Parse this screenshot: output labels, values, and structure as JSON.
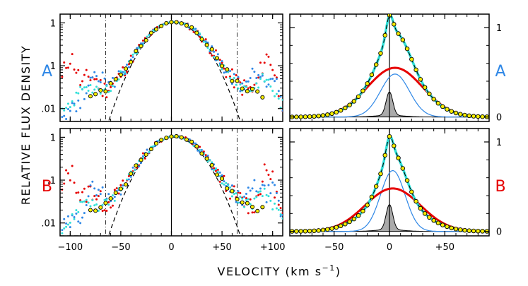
{
  "colors": {
    "blue": "#2e87e6",
    "red": "#e60000",
    "cyan": "#2fe0d8",
    "dot_fill": "#f5ec00",
    "gray_fill": "#aaaaaa",
    "black": "#000000"
  },
  "labels": {
    "ylabel": "RELATIVE FLUX DENSITY",
    "xlabel": "VELOCITY  (km s",
    "xlabel_sup": "−1",
    "xlabel_close": ")",
    "image_A": "A",
    "image_B": "B"
  },
  "chart_data": [
    {
      "panel": "A-log",
      "type": "line",
      "yscale": "log",
      "xlim": [
        -110,
        110
      ],
      "ylim": [
        0.005,
        1.6
      ],
      "xticks": [
        -100,
        -50,
        0,
        50,
        100
      ],
      "xticklabels": [
        "−100",
        "−50",
        "0",
        "+50",
        "+100"
      ],
      "yticks": [
        0.01,
        0.1,
        1
      ],
      "yticklabels": [
        ".01",
        ".1",
        "1"
      ],
      "vlines": [
        -65,
        0,
        65
      ],
      "profile": {
        "center": 3,
        "core_sigma": 20,
        "wing_amp": 0.05,
        "wing_sigma": 60,
        "wing_shift": 5
      },
      "image_label": "A"
    },
    {
      "panel": "A-linear",
      "type": "line",
      "yscale": "linear",
      "xlim": [
        -90,
        90
      ],
      "ylim": [
        -0.05,
        1.15
      ],
      "xticks": [
        -50,
        0,
        50
      ],
      "xticklabels": [
        "−50",
        "0",
        "+50"
      ],
      "yticks": [
        0,
        1
      ],
      "yticklabels": [
        "0",
        "1"
      ],
      "components": [
        {
          "name": "broad (red)",
          "amp": 0.55,
          "center": 5,
          "sigma": 25
        },
        {
          "name": "intermediate (blue)",
          "amp": 0.48,
          "center": 5,
          "sigma": 13
        },
        {
          "name": "narrow (gray)",
          "amp": 0.26,
          "center": 0,
          "sigma": 3
        }
      ],
      "image_label": "A"
    },
    {
      "panel": "B-log",
      "type": "line",
      "yscale": "log",
      "xlim": [
        -110,
        110
      ],
      "ylim": [
        0.005,
        1.6
      ],
      "xticks": [
        -100,
        -50,
        0,
        50,
        100
      ],
      "xticklabels": [
        "−100",
        "−50",
        "0",
        "+50",
        "+100"
      ],
      "yticks": [
        0.01,
        0.1,
        1
      ],
      "yticklabels": [
        ".01",
        ".1",
        "1"
      ],
      "vlines": [
        -65,
        0,
        65
      ],
      "profile": {
        "center": 3,
        "core_sigma": 20,
        "wing_amp": 0.05,
        "wing_sigma": 60,
        "wing_shift": 5
      },
      "image_label": "B"
    },
    {
      "panel": "B-linear",
      "type": "line",
      "yscale": "linear",
      "xlim": [
        -90,
        90
      ],
      "ylim": [
        -0.05,
        1.15
      ],
      "xticks": [
        -50,
        0,
        50
      ],
      "xticklabels": [
        "−50",
        "0",
        "+50"
      ],
      "yticks": [
        0,
        1
      ],
      "yticklabels": [
        "0",
        "1"
      ],
      "components": [
        {
          "name": "broad (red)",
          "amp": 0.48,
          "center": 3,
          "sigma": 25
        },
        {
          "name": "intermediate (blue)",
          "amp": 0.68,
          "center": 3,
          "sigma": 11
        },
        {
          "name": "narrow (gray)",
          "amp": 0.28,
          "center": 0,
          "sigma": 3
        }
      ],
      "image_label": "B"
    }
  ]
}
